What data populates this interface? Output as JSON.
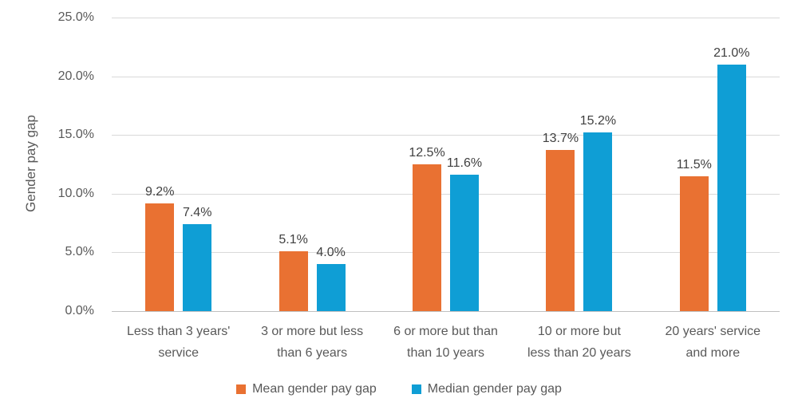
{
  "chart_data": {
    "type": "bar",
    "title": "",
    "ylabel": "Gender pay gap",
    "xlabel": "",
    "ylim": [
      0,
      25
    ],
    "grid": true,
    "legend_position": "bottom",
    "yticks": [
      {
        "value": 0,
        "label": "0.0%"
      },
      {
        "value": 5,
        "label": "5.0%"
      },
      {
        "value": 10,
        "label": "10.0%"
      },
      {
        "value": 15,
        "label": "15.0%"
      },
      {
        "value": 20,
        "label": "20.0%"
      },
      {
        "value": 25,
        "label": "25.0%"
      }
    ],
    "categories": [
      "Less than 3 years'\nservice",
      "3 or more but less\nthan 6 years",
      "6 or more but than\nthan 10 years",
      "10 or more but\nless than 20 years",
      "20 years' service\nand more"
    ],
    "series": [
      {
        "name": "Mean gender pay gap",
        "color": "#E97132",
        "values": [
          9.2,
          5.1,
          12.5,
          13.7,
          11.5
        ],
        "labels": [
          "9.2%",
          "5.1%",
          "12.5%",
          "13.7%",
          "11.5%"
        ]
      },
      {
        "name": "Median gender pay gap",
        "color": "#0F9ED5",
        "values": [
          7.4,
          4.0,
          11.6,
          15.2,
          21.0
        ],
        "labels": [
          "7.4%",
          "4.0%",
          "11.6%",
          "15.2%",
          "21.0%"
        ]
      }
    ],
    "colors": {
      "gridline": "#D9D9D9",
      "axis_line": "#BFBFBF",
      "tick_text": "#595959",
      "data_label_text": "#404040",
      "background": "#FFFFFF"
    }
  }
}
